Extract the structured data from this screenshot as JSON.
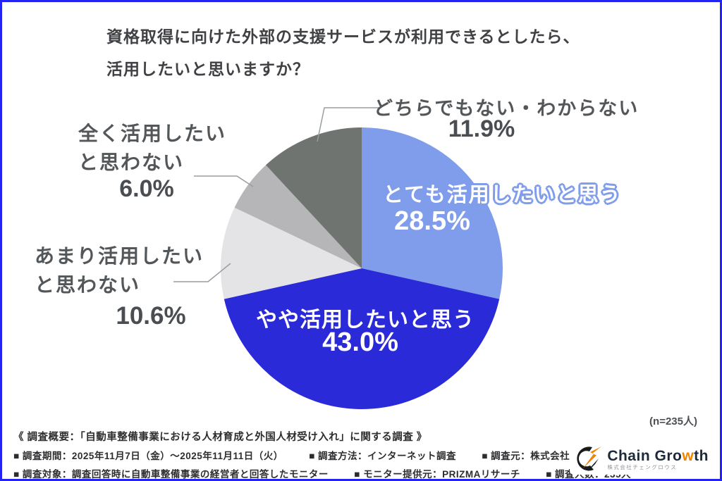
{
  "title": {
    "line1": "資格取得に向けた外部の支援サービスが利用できるとしたら、",
    "line2": "活用したいと思いますか？"
  },
  "chart_data": {
    "type": "pie",
    "title": "資格取得に向けた外部の支援サービスが利用できるとしたら、活用したいと思いますか？",
    "sample_size_label": "(n=235人)",
    "start_angle_deg": 0,
    "direction": "clockwise",
    "legend_position": "labels-on-and-around-pie",
    "slices": [
      {
        "label": "とても活用したいと思う",
        "value": 28.5,
        "pct_label": "28.5%",
        "color": "#7f9dea",
        "label_placement": "inside"
      },
      {
        "label": "やや活用したいと思う",
        "value": 43.0,
        "pct_label": "43.0%",
        "color": "#2a2ad8",
        "label_placement": "inside"
      },
      {
        "label": "あまり活用したいと思わない",
        "value": 10.6,
        "pct_label": "10.6%",
        "color": "#e4e4e6",
        "label_placement": "outside"
      },
      {
        "label": "全く活用したいと思わない",
        "value": 6.0,
        "pct_label": "6.0%",
        "color": "#b6b6b8",
        "label_placement": "outside"
      },
      {
        "label": "どちらでもない・わからない",
        "value": 11.9,
        "pct_label": "11.9%",
        "color": "#6f7470",
        "label_placement": "outside"
      }
    ]
  },
  "labels": {
    "very": {
      "text": "とても活用したいと思う",
      "pct": "28.5%"
    },
    "somewhat": {
      "text": "やや活用したいと思う",
      "pct": "43.0%"
    },
    "not_really": {
      "line1": "あまり活用したい",
      "line2": "と思わない",
      "pct": "10.6%"
    },
    "not_at_all": {
      "line1": "全く活用したい",
      "line2": "と思わない",
      "pct": "6.0%"
    },
    "neither": {
      "text": "どちらでもない・わからない",
      "pct": "11.9%"
    }
  },
  "annotations": {
    "sample_size": "(n=235人)"
  },
  "footer": {
    "heading": "《 調査概要：「自動車整備事業における人材育成と外国人材受け入れ」に関する調査 》",
    "row2": [
      "■ 調査期間：2025年11月7日（金）〜2025年11月11日（火）",
      "■ 調査方法：インターネット調査",
      "■ 調査元：株式会社チェングロウス"
    ],
    "row3": [
      "■ 調査対象：調査回答時に自動車整備事業の経営者と回答したモニター",
      "■ モニター提供元：PRIZMAリサーチ",
      "■ 調査人数：235人"
    ]
  },
  "logo": {
    "part1": "Chain Gro",
    "part2": "w",
    "part3": "th",
    "subtitle": "株式会社チェングロウス",
    "accent_color": "#f08300",
    "text_color": "#1c2a3a"
  },
  "frame": {
    "background": "#ffffff",
    "border_color": "#2323f2"
  }
}
